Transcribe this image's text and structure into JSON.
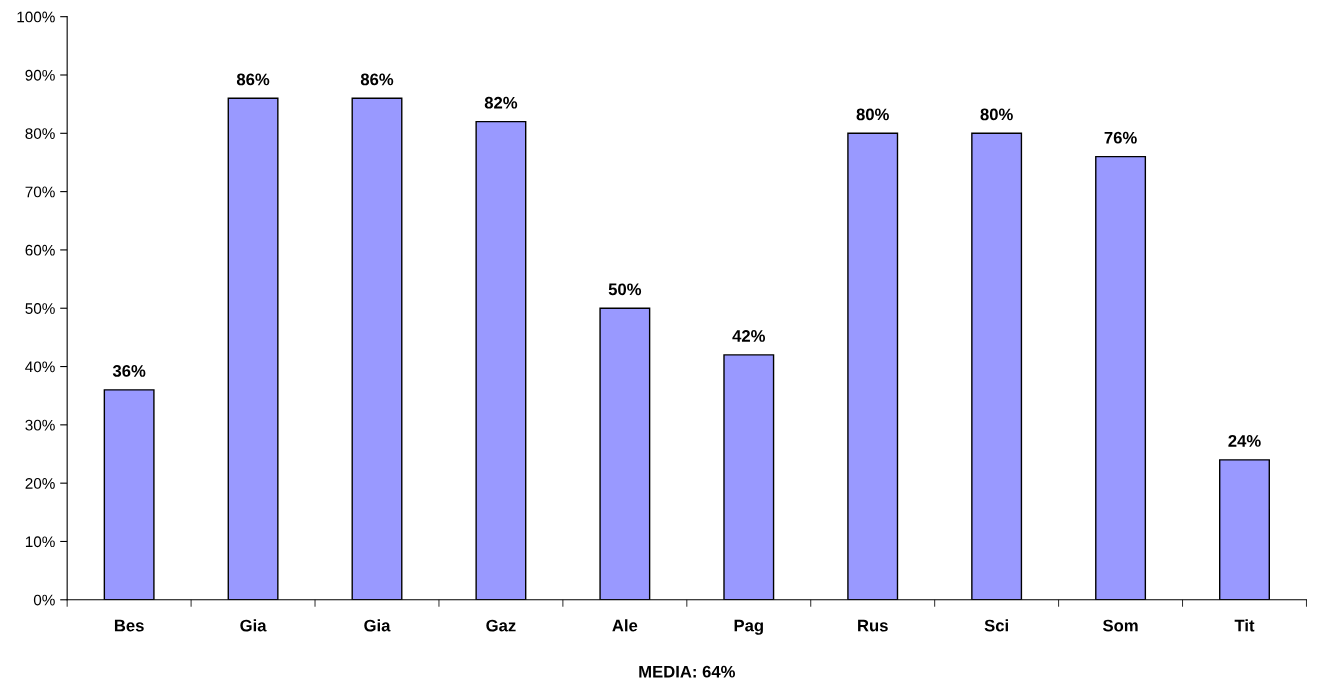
{
  "chart_data": {
    "type": "bar",
    "xlabel": "MEDIA: 64%",
    "categories": [
      "Bes",
      "Gia",
      "Gia",
      "Gaz",
      "Ale",
      "Pag",
      "Rus",
      "Sci",
      "Som",
      "Tit"
    ],
    "values": [
      36,
      86,
      86,
      82,
      50,
      42,
      80,
      80,
      76,
      24
    ],
    "value_labels": [
      "36%",
      "86%",
      "86%",
      "82%",
      "50%",
      "42%",
      "80%",
      "80%",
      "76%",
      "24%"
    ],
    "color": "#9999ff",
    "ylim": [
      0,
      100
    ],
    "yticks": [
      {
        "value": 0,
        "label": "0%"
      },
      {
        "value": 10,
        "label": "10%"
      },
      {
        "value": 20,
        "label": "20%"
      },
      {
        "value": 30,
        "label": "30%"
      },
      {
        "value": 40,
        "label": "40%"
      },
      {
        "value": 50,
        "label": "50%"
      },
      {
        "value": 60,
        "label": "60%"
      },
      {
        "value": 70,
        "label": "70%"
      },
      {
        "value": 80,
        "label": "80%"
      },
      {
        "value": 90,
        "label": "90%"
      },
      {
        "value": 100,
        "label": "100%"
      }
    ],
    "grid": false,
    "legend": false
  }
}
